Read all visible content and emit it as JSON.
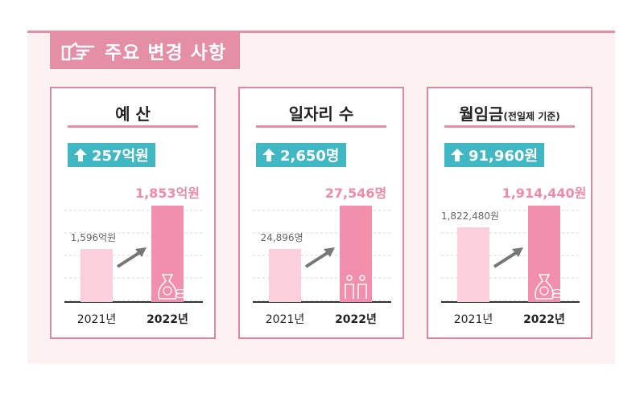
{
  "header": {
    "title": "주요 변경 사항"
  },
  "colors": {
    "accent": "#e58fa6",
    "bar_prev": "#fbd0dc",
    "bar_curr": "#f28fac",
    "badge": "#3fb8c3",
    "value_curr": "#f08aa6"
  },
  "cards": [
    {
      "title": "예 산",
      "subtitle": "",
      "change": "257억원"
    },
    {
      "title": "일자리 수",
      "subtitle": "",
      "change": "2,650명"
    },
    {
      "title": "월임금",
      "subtitle": "(전일제 기준)",
      "change": "91,960원"
    }
  ],
  "chart_data": [
    {
      "type": "bar",
      "title": "예 산",
      "categories": [
        "2021년",
        "2022년"
      ],
      "values": [
        1596,
        1853
      ],
      "value_labels": [
        "1,596억원",
        "1,853억원"
      ],
      "unit": "억원"
    },
    {
      "type": "bar",
      "title": "일자리 수",
      "categories": [
        "2021년",
        "2022년"
      ],
      "values": [
        24896,
        27546
      ],
      "value_labels": [
        "24,896명",
        "27,546명"
      ],
      "unit": "명"
    },
    {
      "type": "bar",
      "title": "월임금(전일제 기준)",
      "categories": [
        "2021년",
        "2022년"
      ],
      "values": [
        1822480,
        1914440
      ],
      "value_labels": [
        "1,822,480원",
        "1,914,440원"
      ],
      "unit": "원"
    }
  ]
}
